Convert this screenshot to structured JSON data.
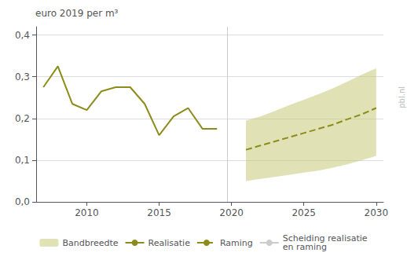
{
  "chart_data": {
    "type": "line",
    "title": "euro 2019 per m³",
    "annotations": [
      "pbl.nl"
    ],
    "series": [
      {
        "name": "Bandbreedte",
        "type": "band",
        "color": "#c8c87a",
        "x": [
          2021,
          2022,
          2023,
          2024,
          2025,
          2026,
          2027,
          2028,
          2029,
          2030
        ],
        "lower": [
          0.05,
          0.055,
          0.06,
          0.065,
          0.07,
          0.075,
          0.082,
          0.09,
          0.1,
          0.11
        ],
        "upper": [
          0.195,
          0.205,
          0.218,
          0.232,
          0.245,
          0.258,
          0.272,
          0.288,
          0.305,
          0.32
        ]
      },
      {
        "name": "Realisatie",
        "type": "line",
        "color": "#8c8c1a",
        "line_style": "solid",
        "x": [
          2007,
          2008,
          2009,
          2010,
          2011,
          2012,
          2013,
          2014,
          2015,
          2016,
          2017,
          2018,
          2019
        ],
        "values": [
          0.275,
          0.325,
          0.235,
          0.22,
          0.265,
          0.275,
          0.275,
          0.235,
          0.16,
          0.205,
          0.225,
          0.175,
          0.175
        ]
      },
      {
        "name": "Raming",
        "type": "line",
        "color": "#8c8c1a",
        "line_style": "dashed",
        "x": [
          2021,
          2022,
          2023,
          2024,
          2025,
          2026,
          2027,
          2028,
          2029,
          2030
        ],
        "values": [
          0.125,
          0.135,
          0.145,
          0.155,
          0.165,
          0.175,
          0.185,
          0.198,
          0.21,
          0.225
        ]
      },
      {
        "name": "Scheiding realisatie\nen raming",
        "type": "vline",
        "color": "#cccccc",
        "x": 2019.7
      }
    ],
    "xlim": [
      2006.5,
      2030.5
    ],
    "xticks": [
      2010,
      2015,
      2020,
      2025,
      2030
    ],
    "ylim": [
      0.0,
      0.42
    ],
    "yticks": [
      {
        "value": 0.0,
        "label": "0,0"
      },
      {
        "value": 0.1,
        "label": "0,1"
      },
      {
        "value": 0.2,
        "label": "0,2"
      },
      {
        "value": 0.3,
        "label": "0,3"
      },
      {
        "value": 0.4,
        "label": "0,4"
      }
    ],
    "grid": "y",
    "legend": "bottom"
  }
}
